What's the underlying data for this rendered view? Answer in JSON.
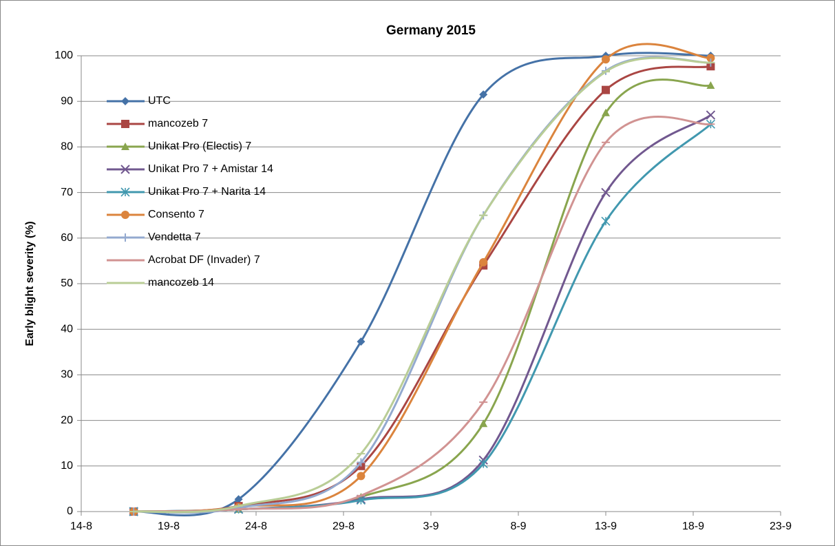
{
  "chart_data": {
    "type": "line",
    "title": "Germany 2015",
    "y_label": "Early blight severity (%)",
    "x": [
      "17-8",
      "23-8",
      "30-8",
      "6-9",
      "13-9",
      "19-9"
    ],
    "xlim": [
      "14-8",
      "23-9"
    ],
    "xticks": [
      "14-8",
      "19-8",
      "24-8",
      "29-8",
      "3-9",
      "8-9",
      "13-9",
      "18-9",
      "23-9"
    ],
    "ylim": [
      0,
      100
    ],
    "yticks": [
      0,
      10,
      20,
      30,
      40,
      50,
      60,
      70,
      80,
      90,
      100
    ],
    "grid": true,
    "legend": "upper left",
    "smooth": true,
    "series": [
      {
        "name": "UTC",
        "color": "#4572a7",
        "marker": "diamond",
        "values": [
          0,
          2.7,
          37.3,
          91.5,
          100,
          100
        ]
      },
      {
        "name": "mancozeb 7",
        "color": "#aa4643",
        "marker": "square",
        "values": [
          0,
          1.2,
          10,
          54,
          92.5,
          97.7
        ]
      },
      {
        "name": "Unikat Pro (Electis) 7",
        "color": "#89a54e",
        "marker": "triangle",
        "values": [
          0,
          0.5,
          3.2,
          19.3,
          87.5,
          93.5
        ]
      },
      {
        "name": "Unikat Pro 7 + Amistar 14",
        "color": "#71588f",
        "marker": "x",
        "values": [
          0,
          0.5,
          2.7,
          11.3,
          70,
          87
        ]
      },
      {
        "name": "Unikat Pro 7 + Narita 14",
        "color": "#4198af",
        "marker": "star",
        "values": [
          0,
          0.5,
          2.5,
          10.5,
          63.7,
          85
        ]
      },
      {
        "name": "Consento 7",
        "color": "#db843d",
        "marker": "circle",
        "values": [
          0,
          1.0,
          7.8,
          54.7,
          99.2,
          99.5
        ]
      },
      {
        "name": "Vendetta 7",
        "color": "#93a9cf",
        "marker": "plus",
        "values": [
          0,
          0.8,
          10.8,
          65,
          96.7,
          98.5
        ]
      },
      {
        "name": "Acrobat DF (Invader) 7",
        "color": "#d19392",
        "marker": "dash",
        "values": [
          0,
          0.5,
          3.5,
          24,
          81,
          85
        ]
      },
      {
        "name": "mancozeb 14",
        "color": "#b9cd96",
        "marker": "dash",
        "values": [
          0,
          1.2,
          12.7,
          65,
          96.5,
          98.5
        ]
      }
    ]
  }
}
